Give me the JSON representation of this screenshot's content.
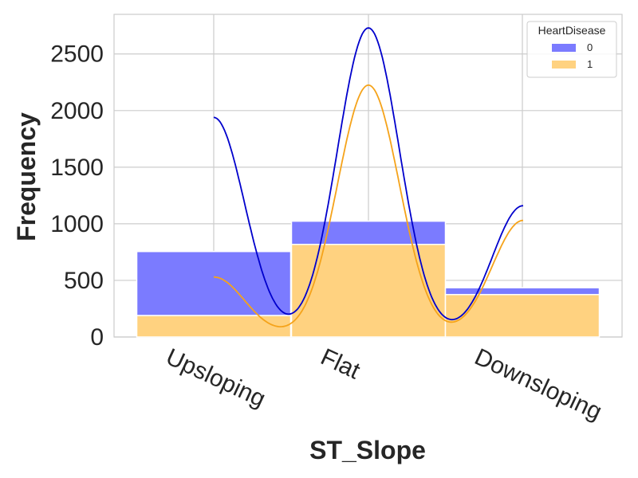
{
  "chart_data": {
    "type": "bar",
    "stacked": true,
    "categories": [
      "Upsloping",
      "Flat",
      "Downsloping"
    ],
    "series": [
      {
        "name": "0",
        "values": [
          565,
          205,
          60
        ],
        "color": "#7b7bff"
      },
      {
        "name": "1",
        "values": [
          190,
          818,
          375
        ],
        "color": "#ffd280"
      }
    ],
    "kde": {
      "series_0": {
        "color": "#0000cc",
        "peaks": [
          1940,
          2730,
          1160
        ]
      },
      "series_1": {
        "color": "#f5a31a",
        "peaks": [
          530,
          2225,
          1030
        ]
      }
    },
    "xlabel": "ST_Slope",
    "ylabel": "Frequency",
    "ylim": [
      0,
      2850
    ],
    "yticks": [
      "0",
      "500",
      "1000",
      "1500",
      "2000",
      "2500"
    ],
    "grid": true,
    "legend": {
      "title": "HeartDisease",
      "position": "top-right",
      "entries": [
        "0",
        "1"
      ]
    }
  }
}
